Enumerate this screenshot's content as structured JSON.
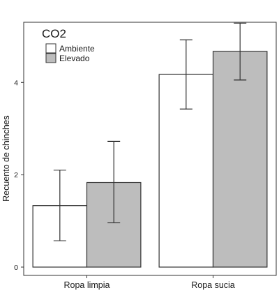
{
  "chart_data": {
    "type": "bar",
    "title": "",
    "xlabel": "",
    "ylabel": "Recuento de chinches",
    "ylim": [
      -0.18,
      5.3
    ],
    "yticks": [
      0,
      2,
      4
    ],
    "categories": [
      "Ropa limpia",
      "Ropa sucia"
    ],
    "legend": {
      "title": "CO2",
      "position": "top-left",
      "entries": [
        "Ambiente",
        "Elevado"
      ]
    },
    "series": [
      {
        "name": "Ambiente",
        "color": "#ffffff",
        "values": [
          1.33,
          4.17
        ],
        "error_low": [
          0.57,
          3.42
        ],
        "error_high": [
          2.1,
          4.92
        ]
      },
      {
        "name": "Elevado",
        "color": "#bdbdbd",
        "values": [
          1.83,
          4.67
        ],
        "error_low": [
          0.96,
          4.05
        ],
        "error_high": [
          2.72,
          5.28
        ]
      }
    ],
    "grid": false
  }
}
